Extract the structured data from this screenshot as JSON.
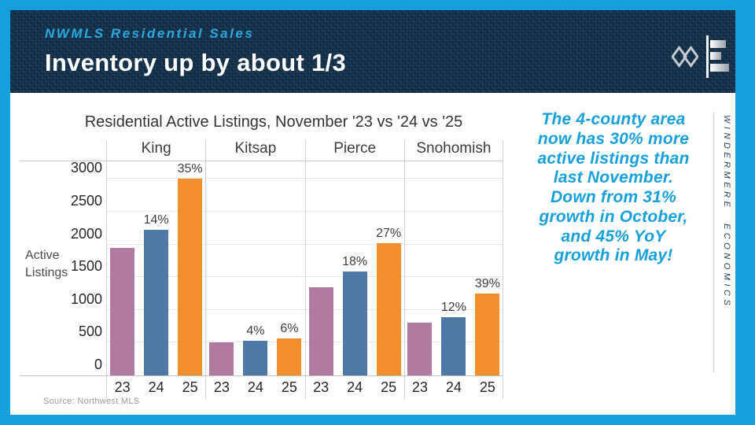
{
  "slide": {
    "eyebrow": "NWMLS Residential Sales",
    "title": "Inventory up by about 1/3",
    "brand_vertical": "WINDERMERE ECONOMICS",
    "colors": {
      "frame_cyan": "#14a0da",
      "header_navy": "#13304a",
      "eyebrow_cyan": "#2aaae1",
      "annotation_blue": "#18a0dc"
    },
    "icons": {
      "windermere_w": "diamond-w-logo",
      "economics_chart": "bar-chart-logo"
    }
  },
  "annotation": {
    "lines": [
      "The 4-county area",
      "now has 30% more",
      "active listings than",
      "last November.",
      "Down from 31%",
      "growth in October,",
      "and 45% YoY",
      "growth in May!"
    ]
  },
  "chart_data": {
    "type": "bar",
    "title": "Residential Active Listings, November '23 vs '24 vs '25",
    "ylabel": "Active Listings",
    "categories": [
      "King",
      "Kitsap",
      "Pierce",
      "Snohomish"
    ],
    "series": [
      {
        "name": "23",
        "color": "#b07aa1",
        "values": [
          1950,
          510,
          1350,
          800
        ],
        "pct_labels": [
          "",
          "",
          "",
          ""
        ]
      },
      {
        "name": "24",
        "color": "#4e79a7",
        "values": [
          2225,
          530,
          1590,
          895
        ],
        "pct_labels": [
          "14%",
          "4%",
          "18%",
          "12%"
        ]
      },
      {
        "name": "25",
        "color": "#f28e2b",
        "values": [
          3000,
          560,
          2020,
          1245
        ],
        "pct_labels": [
          "35%",
          "6%",
          "27%",
          "39%"
        ]
      }
    ],
    "x_tick_labels": [
      "23",
      "24",
      "25"
    ],
    "y_ticks": [
      0,
      500,
      1000,
      1500,
      2000,
      2500,
      3000
    ],
    "ylim": [
      0,
      3280
    ],
    "grid": "horizontal",
    "legend": "none",
    "source": "Source: Northwest MLS"
  }
}
